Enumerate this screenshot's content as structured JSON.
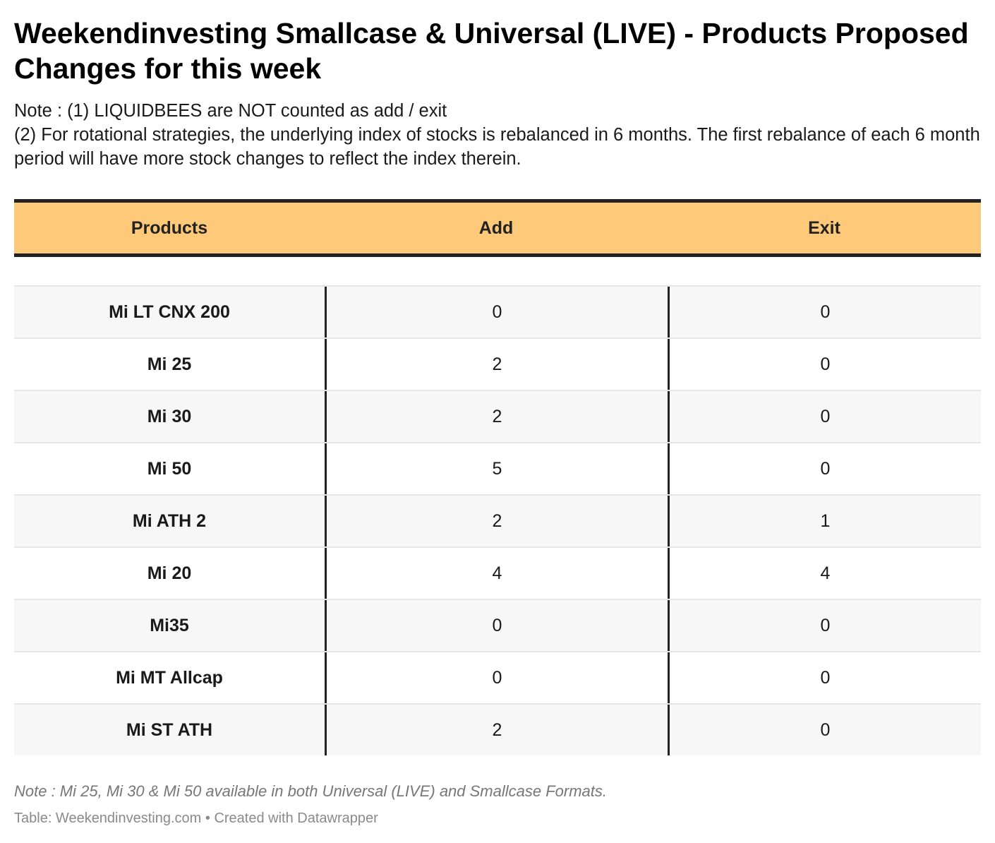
{
  "title": "Weekendinvesting Smallcase & Universal (LIVE) - Products Proposed Changes for this week",
  "notes": [
    "Note : (1) LIQUIDBEES are NOT counted as add / exit",
    "(2) For rotational strategies, the underlying index of stocks is rebalanced in 6 months. The first rebalance of each 6 month period will have more stock changes to reflect the index therein."
  ],
  "footnote": "Note : Mi 25, Mi 30 & Mi 50 available in both Universal (LIVE) and Smallcase Formats.",
  "source": "Table: Weekendinvesting.com • Created with Datawrapper",
  "colors": {
    "header_bg": "#fec978",
    "rule": "#222222",
    "stripe": "#f7f7f7"
  },
  "chart_data": {
    "type": "table",
    "title": "Weekendinvesting Smallcase & Universal (LIVE) - Products Proposed Changes for this week",
    "columns": [
      "Products",
      "Add",
      "Exit"
    ],
    "rows": [
      {
        "product": "Mi LT CNX 200",
        "add": "0",
        "exit": "0"
      },
      {
        "product": "Mi 25",
        "add": "2",
        "exit": "0"
      },
      {
        "product": "Mi 30",
        "add": "2",
        "exit": "0"
      },
      {
        "product": "Mi 50",
        "add": "5",
        "exit": "0"
      },
      {
        "product": "Mi ATH 2",
        "add": "2",
        "exit": "1"
      },
      {
        "product": "Mi 20",
        "add": "4",
        "exit": "4"
      },
      {
        "product": "Mi35",
        "add": "0",
        "exit": "0"
      },
      {
        "product": "Mi MT Allcap",
        "add": "0",
        "exit": "0"
      },
      {
        "product": "Mi ST ATH",
        "add": "2",
        "exit": "0"
      }
    ]
  }
}
